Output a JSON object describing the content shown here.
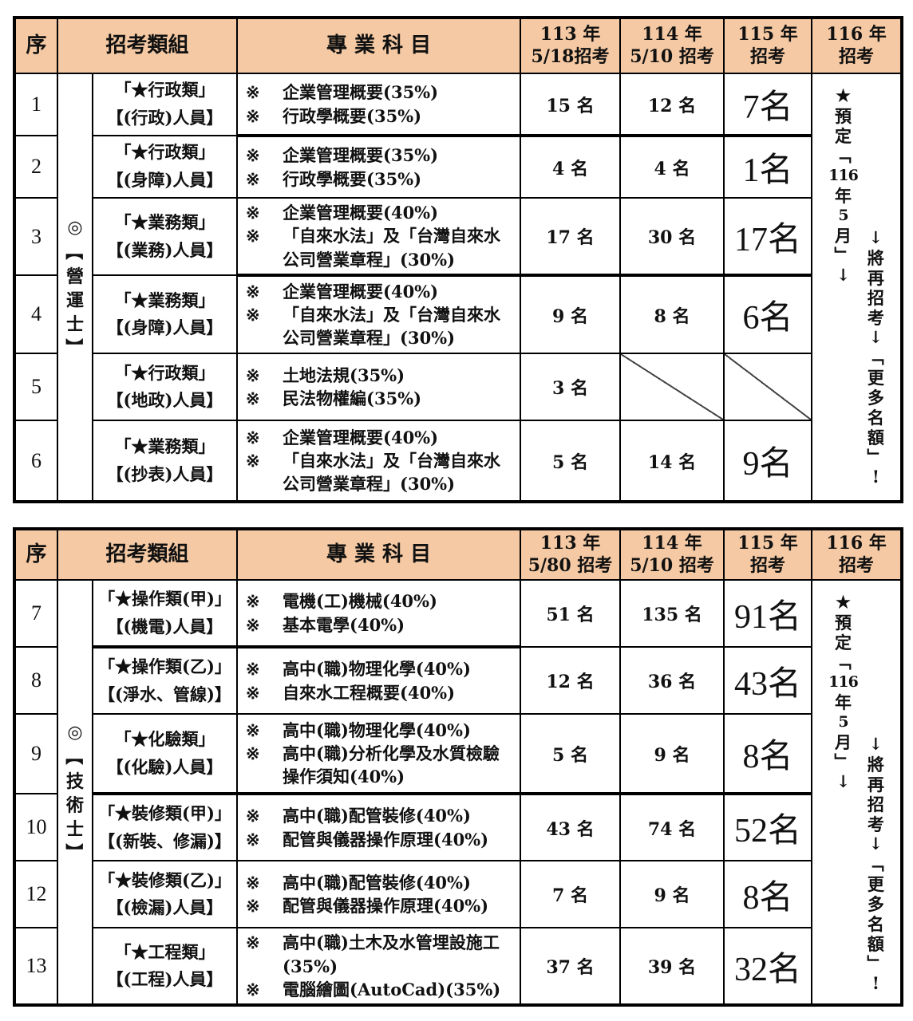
{
  "marker": "※",
  "colors": {
    "header_bg": "#F5C9A3",
    "border": "#000000",
    "text": "#111111"
  },
  "tables": [
    {
      "name": "operations",
      "header": {
        "seq": "序",
        "group": "招考類組",
        "subject": "專 業 科 目",
        "y113": "113 年\n5/18招考",
        "y114": "114 年\n5/10 招考",
        "y115": "115 年\n招考",
        "y116": "116 年\n招考"
      },
      "group_label": "◎【營運士】",
      "note_left": "★預定「116年5月」↓",
      "note_right": "↓將再招考↓「更多名額」!",
      "rows": [
        {
          "seq": "1",
          "category": [
            "「★行政類」",
            "【(行政)人員】"
          ],
          "subjects": [
            "企業管理概要(35%)",
            "行政學概要(35%)"
          ],
          "q113": "15 名",
          "q114": "12 名",
          "q115": "7名"
        },
        {
          "seq": "2",
          "category": [
            "「★行政類」",
            "【(身障)人員】"
          ],
          "subjects": [
            "企業管理概要(35%)",
            "行政學概要(35%)"
          ],
          "q113": "4 名",
          "q114": "4 名",
          "q115": "1名"
        },
        {
          "seq": "3",
          "category": [
            "「★業務類」",
            "【(業務)人員】"
          ],
          "subjects": [
            "企業管理概要(40%)",
            "「自來水法」及「台灣自來水公司營業章程」(30%)"
          ],
          "q113": "17 名",
          "q114": "30 名",
          "q115": "17名"
        },
        {
          "seq": "4",
          "category": [
            "「★業務類」",
            "【(身障)人員】"
          ],
          "subjects": [
            "企業管理概要(40%)",
            "「自來水法」及「台灣自來水公司營業章程」(30%)"
          ],
          "q113": "9 名",
          "q114": "8 名",
          "q115": "6名"
        },
        {
          "seq": "5",
          "category": [
            "「★行政類」",
            "【(地政)人員】"
          ],
          "subjects": [
            "土地法規(35%)",
            "民法物權編(35%)"
          ],
          "q113": "3 名",
          "q114": null,
          "q115": null,
          "diag": [
            "q114",
            "q115"
          ]
        },
        {
          "seq": "6",
          "category": [
            "「★業務類」",
            "【(抄表)人員】"
          ],
          "subjects": [
            "企業管理概要(40%)",
            "「自來水法」及「台灣自來水公司營業章程」(30%)"
          ],
          "q113": "5 名",
          "q114": "14 名",
          "q115": "9名"
        }
      ]
    },
    {
      "name": "technician",
      "header": {
        "seq": "序",
        "group": "招考類組",
        "subject": "專 業 科 目",
        "y113": "113 年\n5/80 招考",
        "y114": "114 年\n5/10 招考",
        "y115": "115 年\n招考",
        "y116": "116 年\n招考"
      },
      "group_label": "◎【技術士】",
      "note_left": "★預定「116年5月」↓",
      "note_right": "↓將再招考↓「更多名額」!",
      "rows": [
        {
          "seq": "7",
          "category": [
            "「★操作類(甲)」",
            "【(機電)人員】"
          ],
          "subjects": [
            "電機(工)機械(40%)",
            "基本電學(40%)"
          ],
          "q113": "51 名",
          "q114": "135 名",
          "q115": "91名"
        },
        {
          "seq": "8",
          "category": [
            "「★操作類(乙)」",
            "【(淨水、管線)】"
          ],
          "subjects": [
            "高中(職)物理化學(40%)",
            "自來水工程概要(40%)"
          ],
          "q113": "12 名",
          "q114": "36 名",
          "q115": "43名"
        },
        {
          "seq": "9",
          "category": [
            "「★化驗類」",
            "【(化驗)人員】"
          ],
          "subjects": [
            "高中(職)物理化學(40%)",
            "高中(職)分析化學及水質檢驗操作須知(40%)"
          ],
          "q113": "5 名",
          "q114": "9 名",
          "q115": "8名"
        },
        {
          "seq": "10",
          "category": [
            "「★裝修類(甲)」",
            "【(新裝、修漏)】"
          ],
          "subjects": [
            "高中(職)配管裝修(40%)",
            "配管與儀器操作原理(40%)"
          ],
          "q113": "43 名",
          "q114": "74 名",
          "q115": "52名"
        },
        {
          "seq": "12",
          "category": [
            "「★裝修類(乙)」",
            "【(檢漏)人員】"
          ],
          "subjects": [
            "高中(職)配管裝修(40%)",
            "配管與儀器操作原理(40%)"
          ],
          "q113": "7 名",
          "q114": "9 名",
          "q115": "8名"
        },
        {
          "seq": "13",
          "category": [
            "「★工程類」",
            "【(工程)人員】"
          ],
          "subjects": [
            "高中(職)土木及水管埋設施工(35%)",
            "電腦繪圖(AutoCad)(35%)"
          ],
          "q113": "37 名",
          "q114": "39 名",
          "q115": "32名"
        }
      ]
    }
  ]
}
